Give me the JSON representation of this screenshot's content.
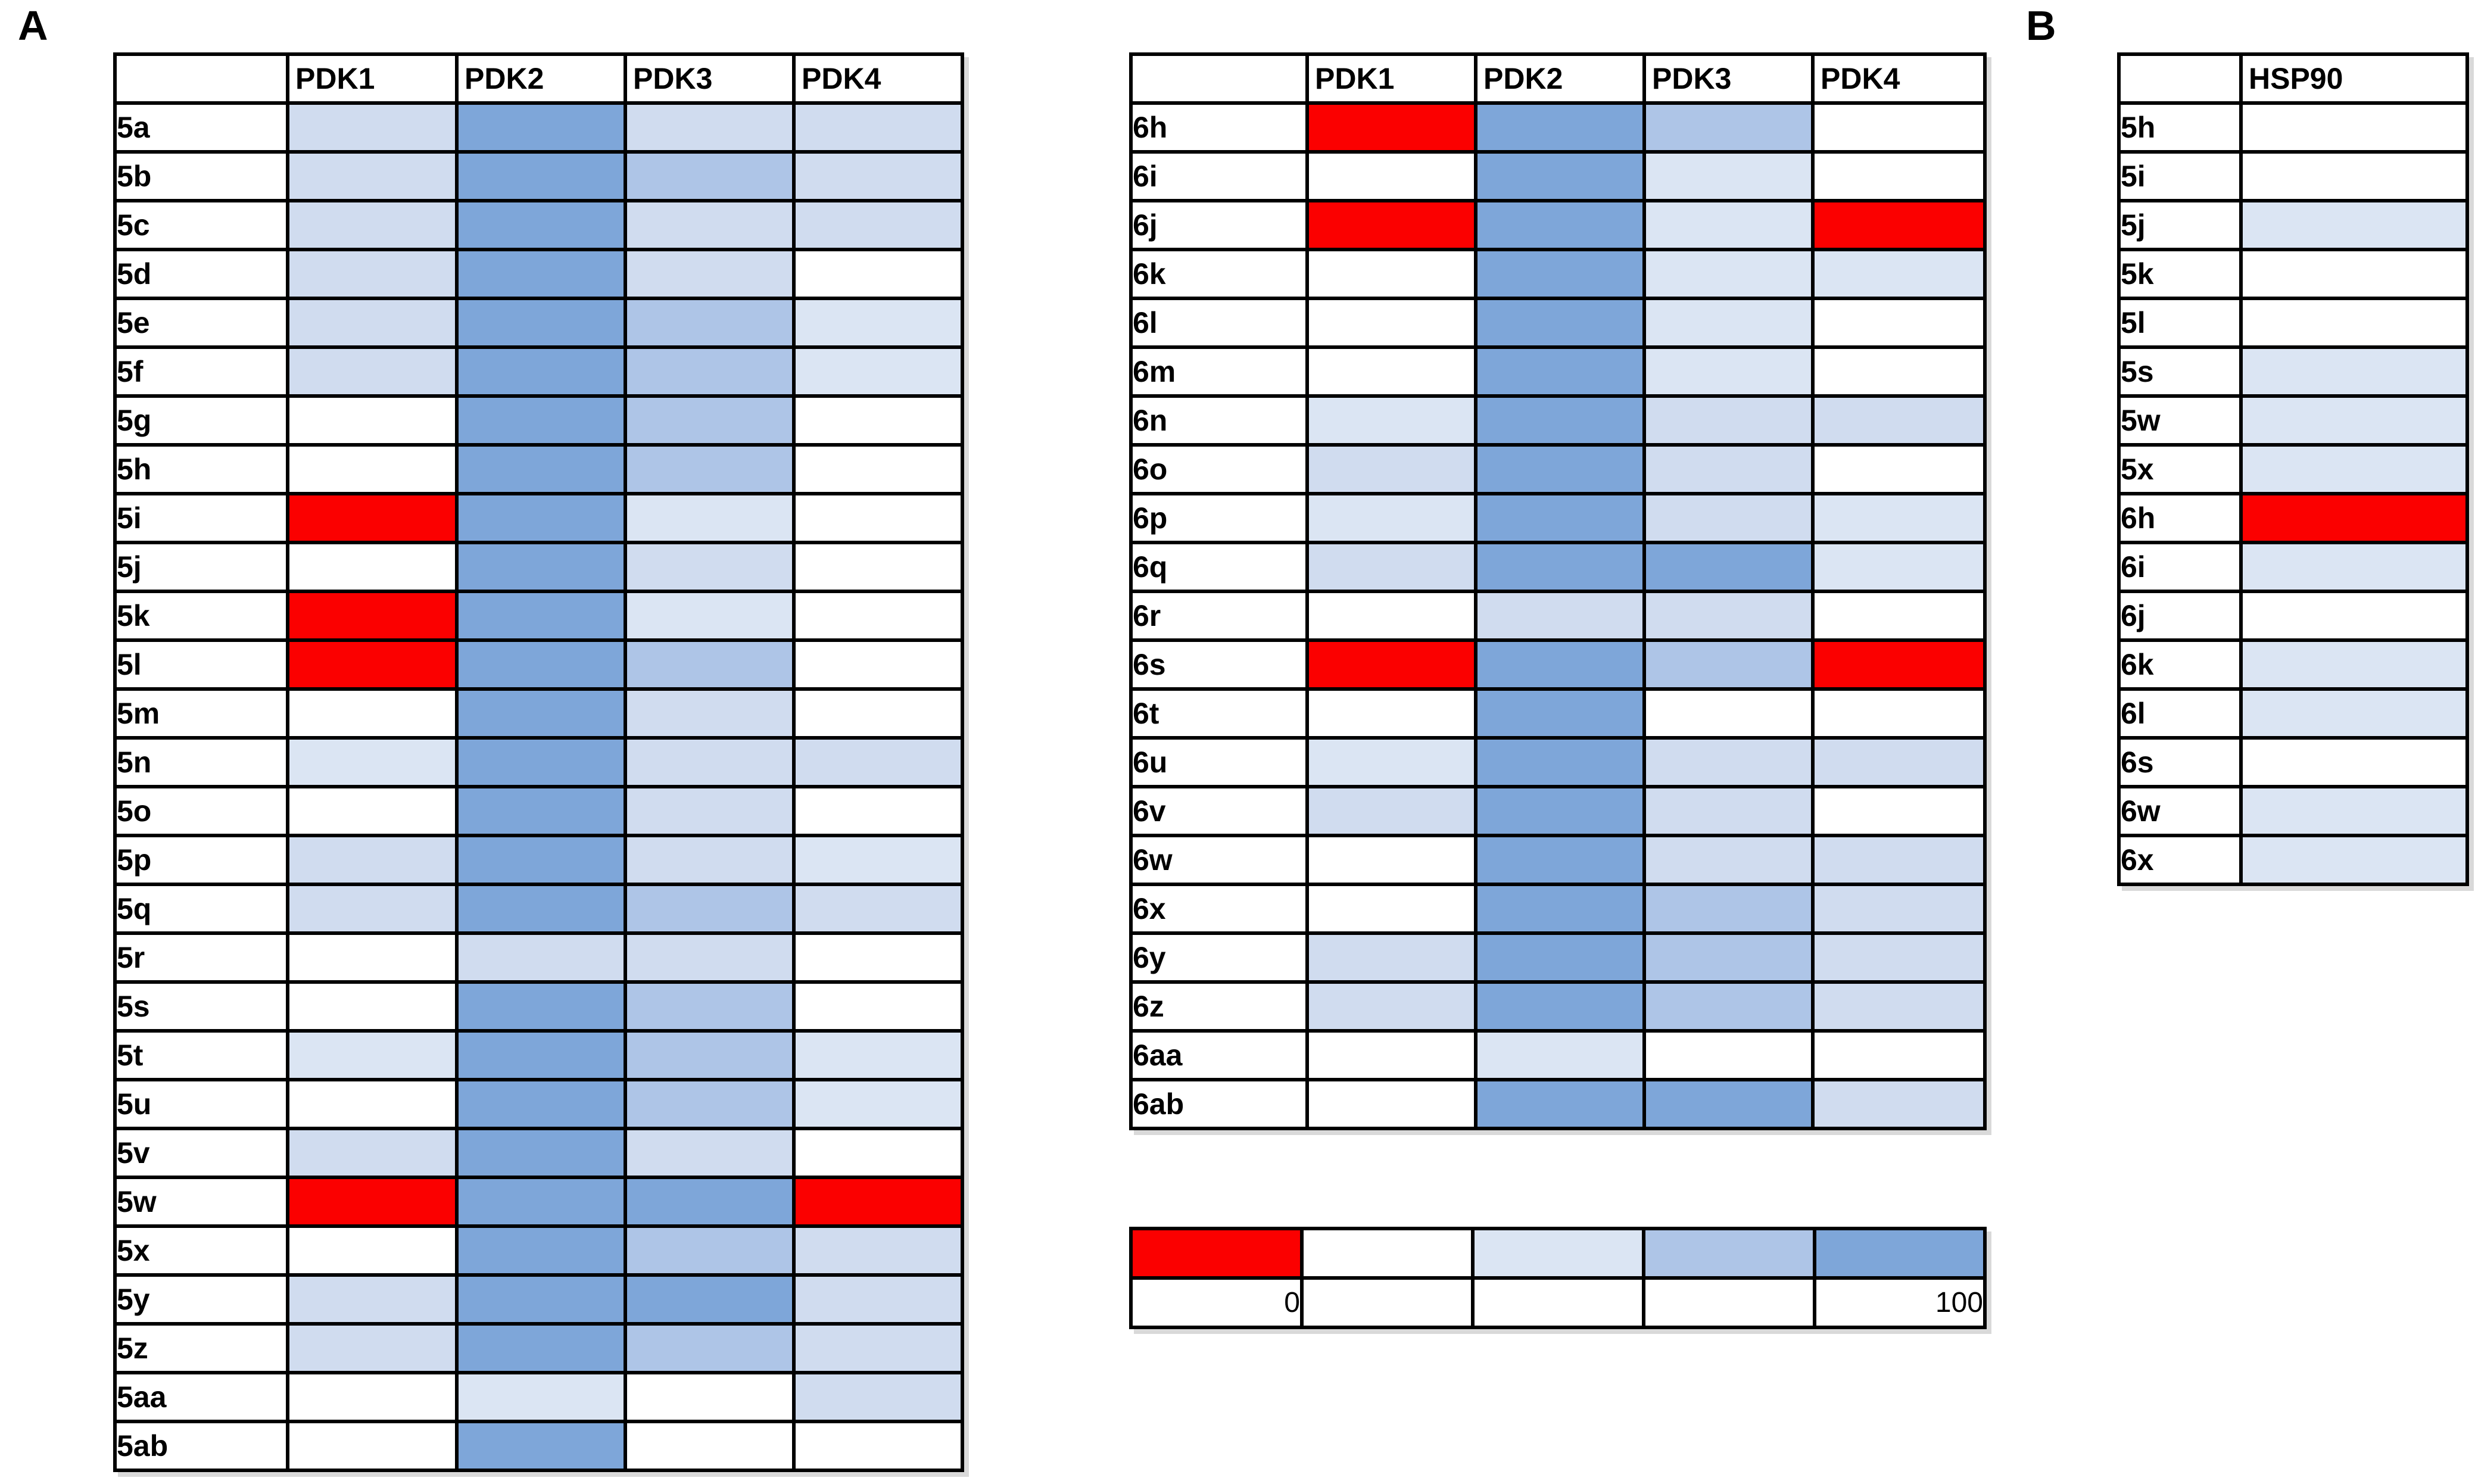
{
  "panel_labels": {
    "a": "A",
    "b": "B"
  },
  "palette": {
    "w": "#ffffff",
    "b1": "#dbe5f3",
    "b2": "#d0dcef",
    "b3": "#aec5e7",
    "b4": "#7ea6d9",
    "r": "#fb0000"
  },
  "legend": {
    "swatches": [
      "r",
      "w",
      "b1",
      "b3",
      "b4"
    ],
    "min_label": "0",
    "max_label": "100"
  },
  "chart_data": [
    {
      "type": "heatmap",
      "name": "panel-a-series5-pdk-activity",
      "columns": [
        "PDK1",
        "PDK2",
        "PDK3",
        "PDK4"
      ],
      "rows": [
        {
          "label": "5a",
          "cells": [
            "b2",
            "b4",
            "b2",
            "b2"
          ]
        },
        {
          "label": "5b",
          "cells": [
            "b2",
            "b4",
            "b3",
            "b2"
          ]
        },
        {
          "label": "5c",
          "cells": [
            "b2",
            "b4",
            "b2",
            "b2"
          ]
        },
        {
          "label": "5d",
          "cells": [
            "b2",
            "b4",
            "b2",
            "w"
          ]
        },
        {
          "label": "5e",
          "cells": [
            "b2",
            "b4",
            "b3",
            "b1"
          ]
        },
        {
          "label": "5f",
          "cells": [
            "b2",
            "b4",
            "b3",
            "b1"
          ]
        },
        {
          "label": "5g",
          "cells": [
            "w",
            "b4",
            "b3",
            "w"
          ]
        },
        {
          "label": "5h",
          "cells": [
            "w",
            "b4",
            "b3",
            "w"
          ]
        },
        {
          "label": "5i",
          "cells": [
            "r",
            "b4",
            "b1",
            "w"
          ]
        },
        {
          "label": "5j",
          "cells": [
            "w",
            "b4",
            "b2",
            "w"
          ]
        },
        {
          "label": "5k",
          "cells": [
            "r",
            "b4",
            "b1",
            "w"
          ]
        },
        {
          "label": "5l",
          "cells": [
            "r",
            "b4",
            "b3",
            "w"
          ]
        },
        {
          "label": "5m",
          "cells": [
            "w",
            "b4",
            "b2",
            "w"
          ]
        },
        {
          "label": "5n",
          "cells": [
            "b1",
            "b4",
            "b2",
            "b2"
          ]
        },
        {
          "label": "5o",
          "cells": [
            "w",
            "b4",
            "b2",
            "w"
          ]
        },
        {
          "label": "5p",
          "cells": [
            "b2",
            "b4",
            "b2",
            "b1"
          ]
        },
        {
          "label": "5q",
          "cells": [
            "b2",
            "b4",
            "b3",
            "b2"
          ]
        },
        {
          "label": "5r",
          "cells": [
            "w",
            "b2",
            "b2",
            "w"
          ]
        },
        {
          "label": "5s",
          "cells": [
            "w",
            "b4",
            "b3",
            "w"
          ]
        },
        {
          "label": "5t",
          "cells": [
            "b1",
            "b4",
            "b3",
            "b1"
          ]
        },
        {
          "label": "5u",
          "cells": [
            "w",
            "b4",
            "b3",
            "b1"
          ]
        },
        {
          "label": "5v",
          "cells": [
            "b2",
            "b4",
            "b2",
            "w"
          ]
        },
        {
          "label": "5w",
          "cells": [
            "r",
            "b4",
            "b4",
            "r"
          ]
        },
        {
          "label": "5x",
          "cells": [
            "w",
            "b4",
            "b3",
            "b2"
          ]
        },
        {
          "label": "5y",
          "cells": [
            "b2",
            "b4",
            "b4",
            "b2"
          ]
        },
        {
          "label": "5z",
          "cells": [
            "b2",
            "b4",
            "b3",
            "b2"
          ]
        },
        {
          "label": "5aa",
          "cells": [
            "w",
            "b1",
            "w",
            "b2"
          ]
        },
        {
          "label": "5ab",
          "cells": [
            "w",
            "b4",
            "w",
            "w"
          ]
        }
      ]
    },
    {
      "type": "heatmap",
      "name": "panel-a-series6-pdk-activity",
      "columns": [
        "PDK1",
        "PDK2",
        "PDK3",
        "PDK4"
      ],
      "rows": [
        {
          "label": "6h",
          "cells": [
            "r",
            "b4",
            "b3",
            "w"
          ]
        },
        {
          "label": "6i",
          "cells": [
            "w",
            "b4",
            "b1",
            "w"
          ]
        },
        {
          "label": "6j",
          "cells": [
            "r",
            "b4",
            "b1",
            "r"
          ]
        },
        {
          "label": "6k",
          "cells": [
            "w",
            "b4",
            "b1",
            "b1"
          ]
        },
        {
          "label": "6l",
          "cells": [
            "w",
            "b4",
            "b1",
            "w"
          ]
        },
        {
          "label": "6m",
          "cells": [
            "w",
            "b4",
            "b1",
            "w"
          ]
        },
        {
          "label": "6n",
          "cells": [
            "b1",
            "b4",
            "b2",
            "b2"
          ]
        },
        {
          "label": "6o",
          "cells": [
            "b2",
            "b4",
            "b2",
            "w"
          ]
        },
        {
          "label": "6p",
          "cells": [
            "b1",
            "b4",
            "b2",
            "b1"
          ]
        },
        {
          "label": "6q",
          "cells": [
            "b2",
            "b4",
            "b4",
            "b1"
          ]
        },
        {
          "label": "6r",
          "cells": [
            "w",
            "b2",
            "b2",
            "w"
          ]
        },
        {
          "label": "6s",
          "cells": [
            "r",
            "b4",
            "b3",
            "r"
          ]
        },
        {
          "label": "6t",
          "cells": [
            "w",
            "b4",
            "w",
            "w"
          ]
        },
        {
          "label": "6u",
          "cells": [
            "b1",
            "b4",
            "b2",
            "b2"
          ]
        },
        {
          "label": "6v",
          "cells": [
            "b2",
            "b4",
            "b2",
            "w"
          ]
        },
        {
          "label": "6w",
          "cells": [
            "w",
            "b4",
            "b2",
            "b2"
          ]
        },
        {
          "label": "6x",
          "cells": [
            "w",
            "b4",
            "b3",
            "b2"
          ]
        },
        {
          "label": "6y",
          "cells": [
            "b2",
            "b4",
            "b3",
            "b2"
          ]
        },
        {
          "label": "6z",
          "cells": [
            "b2",
            "b4",
            "b3",
            "b2"
          ]
        },
        {
          "label": "6aa",
          "cells": [
            "w",
            "b1",
            "w",
            "w"
          ]
        },
        {
          "label": "6ab",
          "cells": [
            "w",
            "b4",
            "b4",
            "b2"
          ]
        }
      ]
    },
    {
      "type": "heatmap",
      "name": "panel-b-hsp90-activity",
      "columns": [
        "HSP90"
      ],
      "rows": [
        {
          "label": "5h",
          "cells": [
            "w"
          ]
        },
        {
          "label": "5i",
          "cells": [
            "w"
          ]
        },
        {
          "label": "5j",
          "cells": [
            "b1"
          ]
        },
        {
          "label": "5k",
          "cells": [
            "w"
          ]
        },
        {
          "label": "5l",
          "cells": [
            "w"
          ]
        },
        {
          "label": "5s",
          "cells": [
            "b1"
          ]
        },
        {
          "label": "5w",
          "cells": [
            "b1"
          ]
        },
        {
          "label": "5x",
          "cells": [
            "b1"
          ]
        },
        {
          "label": "6h",
          "cells": [
            "r"
          ]
        },
        {
          "label": "6i",
          "cells": [
            "b1"
          ]
        },
        {
          "label": "6j",
          "cells": [
            "w"
          ]
        },
        {
          "label": "6k",
          "cells": [
            "b1"
          ]
        },
        {
          "label": "6l",
          "cells": [
            "b1"
          ]
        },
        {
          "label": "6s",
          "cells": [
            "w"
          ]
        },
        {
          "label": "6w",
          "cells": [
            "b1"
          ]
        },
        {
          "label": "6x",
          "cells": [
            "b1"
          ]
        }
      ]
    }
  ]
}
